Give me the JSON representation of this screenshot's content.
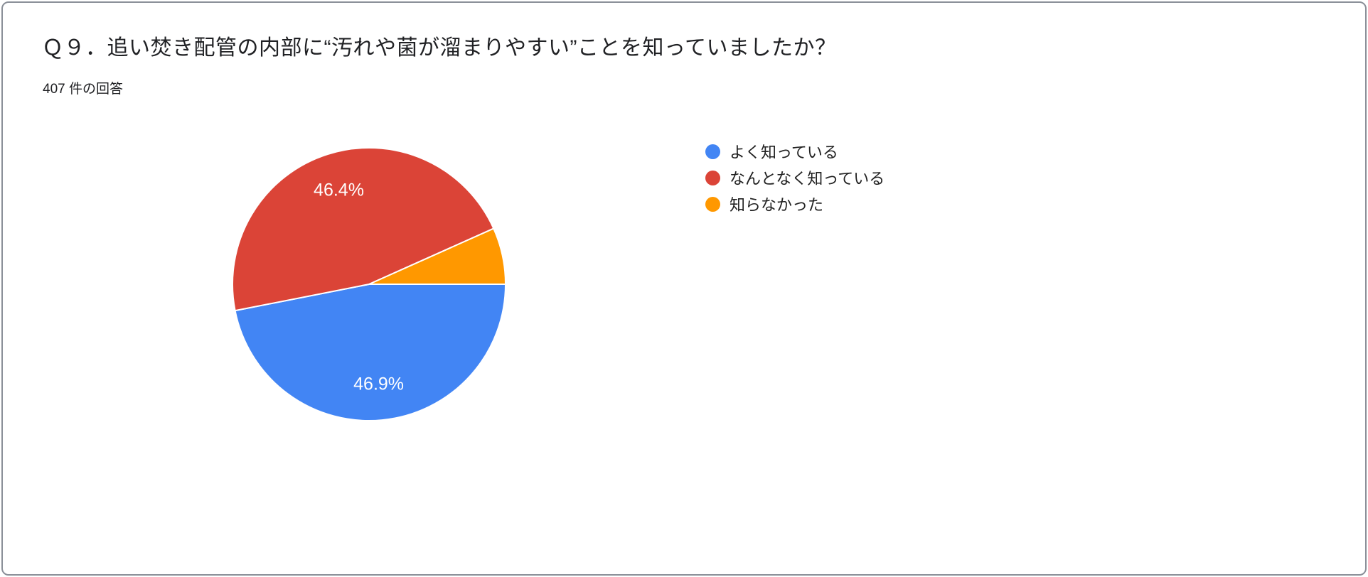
{
  "card": {
    "title": "Ｑ９．追い焚き配管の内部に“汚れや菌が溜まりやすい”ことを知っていましたか？",
    "responses_count": "407 件の回答"
  },
  "chart_data": {
    "type": "pie",
    "title": "Ｑ９．追い焚き配管の内部に“汚れや菌が溜まりやすい”ことを知っていましたか？",
    "subtitle": "407 件の回答",
    "total_responses": 407,
    "start_angle_deg_from_east": 0,
    "direction": "clockwise",
    "legend_position": "right",
    "slice_label_color": "#ffffff",
    "slices": [
      {
        "label": "よく知っている",
        "value_pct": 46.9,
        "display_label": "46.9%",
        "color": "#4285F4"
      },
      {
        "label": "なんとなく知っている",
        "value_pct": 46.4,
        "display_label": "46.4%",
        "color": "#DB4437"
      },
      {
        "label": "知らなかった",
        "value_pct": 6.7,
        "display_label": "",
        "color": "#FF9800"
      }
    ]
  }
}
